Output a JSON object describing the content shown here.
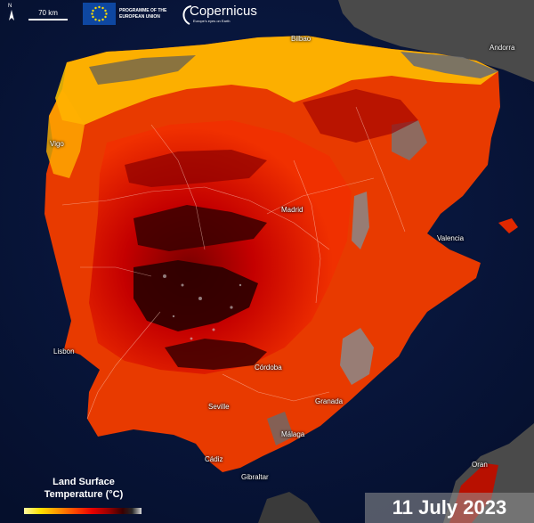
{
  "header": {
    "north_letter": "N",
    "scale_label": "70 km",
    "eu_program_label": "PROGRAMME OF THE\nEUROPEAN UNION",
    "copernicus_name": "Copernicus",
    "copernicus_tagline": "Europe's eyes on Earth"
  },
  "cities": [
    {
      "id": "bilbao",
      "name": "Bilbao"
    },
    {
      "id": "andorra",
      "name": "Andorra"
    },
    {
      "id": "vigo",
      "name": "Vigo"
    },
    {
      "id": "madrid",
      "name": "Madrid"
    },
    {
      "id": "valencia",
      "name": "Valencia"
    },
    {
      "id": "lisbon",
      "name": "Lisbon"
    },
    {
      "id": "cordoba",
      "name": "Córdoba"
    },
    {
      "id": "seville",
      "name": "Seville"
    },
    {
      "id": "granada",
      "name": "Granada"
    },
    {
      "id": "malaga",
      "name": "Málaga"
    },
    {
      "id": "cadiz",
      "name": "Cádiz"
    },
    {
      "id": "gibraltar",
      "name": "Gibraltar"
    },
    {
      "id": "oran",
      "name": "Oran"
    }
  ],
  "legend": {
    "title": "Land Surface\nTemperature (°C)"
  },
  "date_label": "11 July 2023",
  "colors": {
    "sea": "#061233",
    "land_cool": "#555555",
    "temp_warm": "#ffd000",
    "temp_hot": "#ff3300",
    "temp_very_hot": "#c80000",
    "temp_extreme": "#3a0000"
  }
}
